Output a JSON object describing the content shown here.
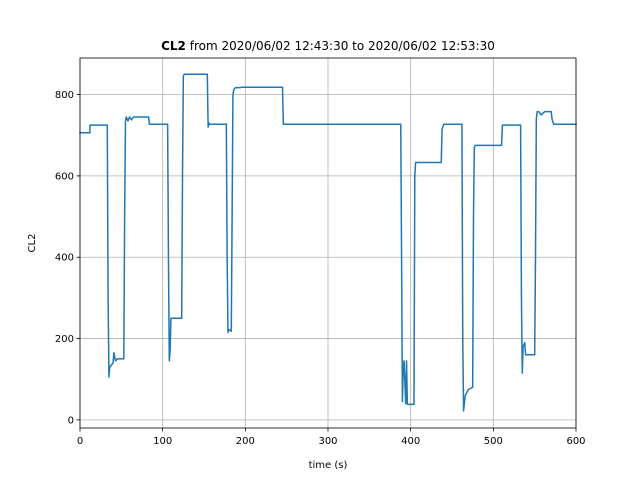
{
  "chart_data": {
    "type": "line",
    "title_bold": "CL2",
    "title_rest": " from 2020/06/02 12:43:30 to 2020/06/02 12:53:30",
    "xlabel": "time (s)",
    "ylabel": "CL2",
    "xlim": [
      0,
      600
    ],
    "ylim": [
      -20,
      890
    ],
    "xticks": [
      0,
      100,
      200,
      300,
      400,
      500,
      600
    ],
    "yticks": [
      0,
      200,
      400,
      600,
      800
    ],
    "grid": true,
    "legend": "none",
    "line_color": "#1f77b4",
    "series": [
      {
        "x": [
          0,
          12,
          12,
          33,
          34,
          35,
          36,
          38,
          40,
          41,
          43,
          45,
          47,
          53,
          54,
          55,
          56,
          57,
          58,
          60,
          62,
          65,
          68,
          83,
          84,
          106,
          107,
          108,
          109,
          110,
          111,
          123,
          124,
          125,
          126,
          154,
          155,
          156,
          157,
          177,
          178,
          179,
          180,
          183,
          184,
          185,
          186,
          188,
          194,
          195,
          245,
          246,
          300,
          388,
          389,
          390,
          391,
          392,
          394,
          395,
          396,
          398,
          400,
          404,
          405,
          406,
          407,
          437,
          438,
          440,
          442,
          462,
          463,
          464,
          466,
          470,
          475,
          476,
          477,
          478,
          510,
          511,
          533,
          534,
          535,
          536,
          538,
          539,
          540,
          541,
          550,
          551,
          552,
          553,
          555,
          558,
          562,
          570,
          571,
          573,
          600
        ],
        "y": [
          706,
          706,
          725,
          725,
          300,
          105,
          130,
          135,
          140,
          165,
          145,
          150,
          150,
          150,
          500,
          735,
          745,
          740,
          735,
          745,
          738,
          745,
          745,
          745,
          727,
          727,
          400,
          145,
          170,
          250,
          250,
          250,
          600,
          845,
          850,
          850,
          720,
          730,
          727,
          727,
          400,
          215,
          222,
          218,
          500,
          800,
          812,
          817,
          817,
          818,
          818,
          727,
          727,
          727,
          400,
          45,
          130,
          145,
          40,
          145,
          38,
          38,
          38,
          38,
          600,
          633,
          633,
          633,
          715,
          727,
          727,
          727,
          200,
          22,
          60,
          75,
          80,
          500,
          670,
          675,
          675,
          725,
          725,
          300,
          115,
          180,
          190,
          160,
          160,
          160,
          160,
          400,
          740,
          758,
          758,
          750,
          758,
          758,
          740,
          727,
          727
        ]
      }
    ]
  }
}
